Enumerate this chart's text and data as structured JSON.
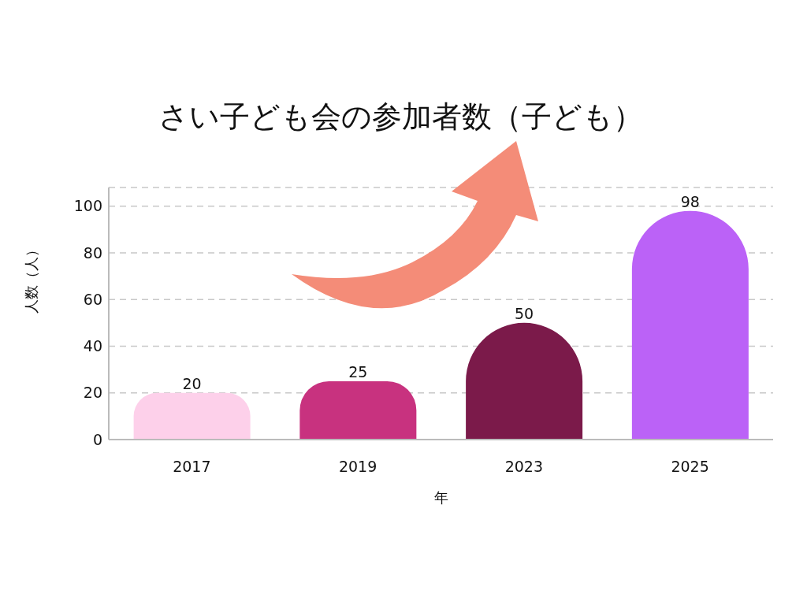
{
  "chart_data": {
    "type": "bar",
    "title": "さい子ども会の参加者数（子ども）",
    "xlabel": "年",
    "ylabel": "人数（人）",
    "categories": [
      "2017",
      "2019",
      "2023",
      "2025"
    ],
    "values": [
      20,
      25,
      50,
      98
    ],
    "colors": [
      "#fdd0ea",
      "#c8327f",
      "#7b1a4a",
      "#bb62f7"
    ],
    "ylim": [
      0,
      108
    ],
    "yticks": [
      0,
      20,
      40,
      60,
      80,
      100
    ],
    "grid": "y",
    "data_labels": true
  }
}
